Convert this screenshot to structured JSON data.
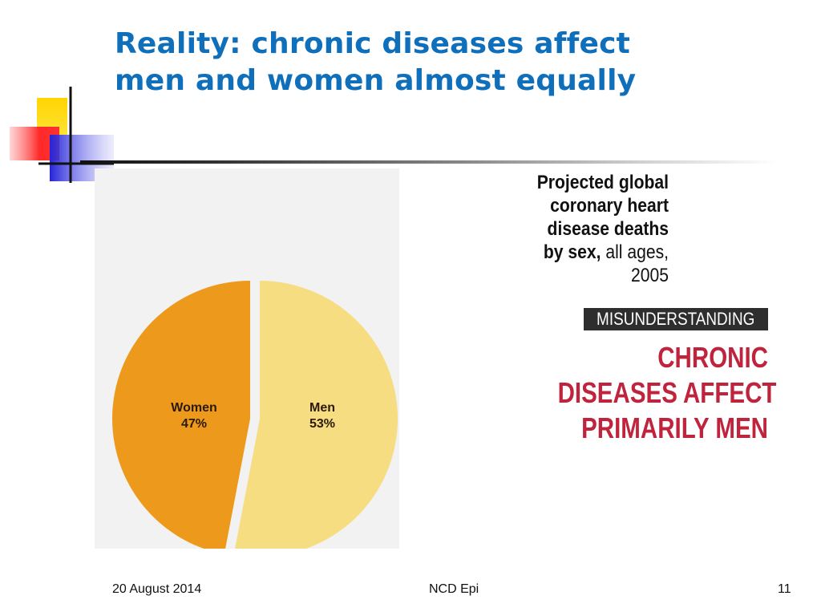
{
  "slide": {
    "title_line1": "Reality: chronic diseases affect",
    "title_line2": "men and women almost equally"
  },
  "chart_data": {
    "type": "pie",
    "title_lines": [
      "Projected global",
      "coronary heart",
      "disease deaths"
    ],
    "title_bold_last": "by sex,",
    "title_thin_last": " all ages,",
    "title_year": "2005",
    "slices": [
      {
        "name": "Women",
        "value": 47,
        "label": "47%",
        "color": "#ed9a1c"
      },
      {
        "name": "Men",
        "value": 53,
        "label": "53%",
        "color": "#f6dd82"
      }
    ]
  },
  "misunderstanding": {
    "header": "MISUNDERSTANDING",
    "line1": "CHRONIC",
    "line2": "DISEASES AFFECT",
    "line3": "PRIMARILY MEN",
    "color": "#c0243d"
  },
  "footer": {
    "date": "20 August 2014",
    "center": "NCD Epi",
    "page": "11"
  }
}
